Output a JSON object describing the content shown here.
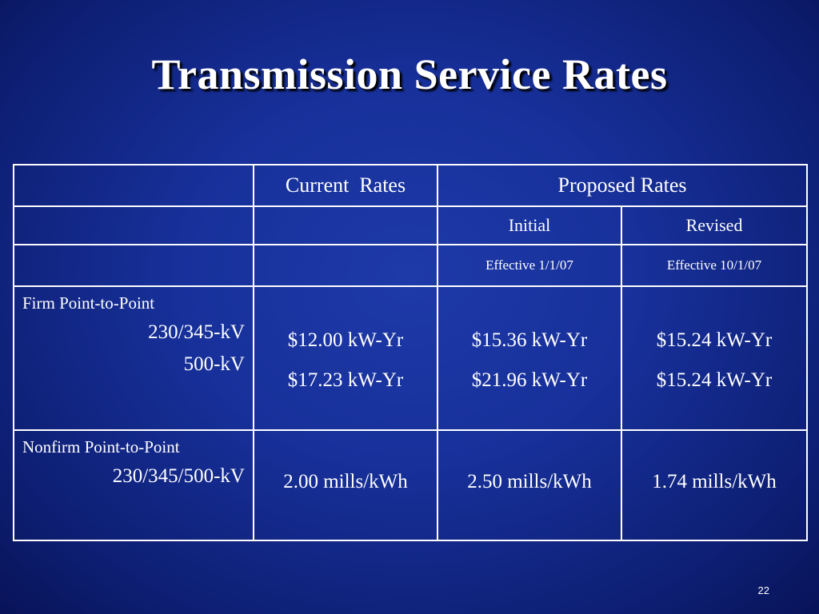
{
  "title": "Transmission Service Rates",
  "table": {
    "header": {
      "current_rates": "Current  Rates",
      "proposed_rates": "Proposed Rates",
      "initial": "Initial",
      "revised": "Revised",
      "effective_initial": "Effective 1/1/07",
      "effective_revised": "Effective 10/1/07"
    },
    "rows": [
      {
        "category": "Firm Point-to-Point",
        "items": [
          {
            "voltage": "230/345-kV",
            "current": "$12.00 kW-Yr",
            "initial": "$15.36 kW-Yr",
            "revised": "$15.24 kW-Yr"
          },
          {
            "voltage": "500-kV",
            "current": "$17.23 kW-Yr",
            "initial": "$21.96 kW-Yr",
            "revised": "$15.24 kW-Yr"
          }
        ]
      },
      {
        "category": "Nonfirm Point-to-Point",
        "items": [
          {
            "voltage": "230/345/500-kV",
            "current": "2.00 mills/kWh",
            "initial": "2.50 mills/kWh",
            "revised": "1.74 mills/kWh"
          }
        ]
      }
    ]
  },
  "slide_number": "22"
}
